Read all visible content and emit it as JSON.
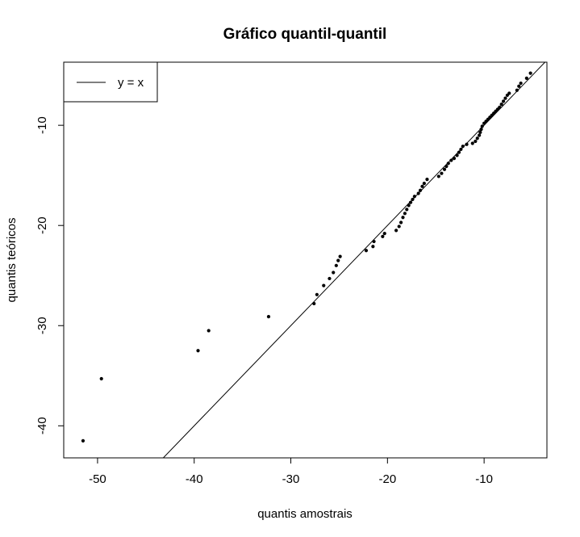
{
  "chart_data": {
    "type": "scatter",
    "title": "Gráfico quantil-quantil",
    "xlabel": "quantis amostrais",
    "ylabel": "quantis teóricos",
    "xlim": [
      -53.5,
      -3.5
    ],
    "ylim": [
      -43.2,
      -3.7
    ],
    "xticks": [
      -50,
      -40,
      -30,
      -20,
      -10
    ],
    "xtick_labels": [
      "-50",
      "-40",
      "-30",
      "-20",
      "-10"
    ],
    "yticks": [
      -40,
      -30,
      -20,
      -10
    ],
    "ytick_labels": [
      "-40",
      "-30",
      "-20",
      "-10"
    ],
    "grid": false,
    "legend": {
      "placement": "top-left",
      "entries": [
        {
          "label": "y = x",
          "style": "line"
        }
      ]
    },
    "reference_line": {
      "slope": 1,
      "intercept": 0,
      "label": "y = x"
    },
    "series": [
      {
        "points": [
          [
            -51.5,
            -41.5
          ],
          [
            -49.6,
            -35.3
          ],
          [
            -39.6,
            -32.5
          ],
          [
            -38.5,
            -30.5
          ],
          [
            -32.3,
            -29.1
          ],
          [
            -27.6,
            -27.8
          ],
          [
            -27.3,
            -26.9
          ],
          [
            -26.6,
            -26.0
          ],
          [
            -26.0,
            -25.3
          ],
          [
            -25.6,
            -24.7
          ],
          [
            -25.3,
            -24.0
          ],
          [
            -25.1,
            -23.5
          ],
          [
            -24.9,
            -23.1
          ],
          [
            -22.2,
            -22.5
          ],
          [
            -21.5,
            -22.1
          ],
          [
            -21.4,
            -21.6
          ],
          [
            -20.5,
            -21.1
          ],
          [
            -20.3,
            -20.8
          ],
          [
            -19.1,
            -20.5
          ],
          [
            -18.8,
            -20.1
          ],
          [
            -18.6,
            -19.7
          ],
          [
            -18.4,
            -19.2
          ],
          [
            -18.2,
            -18.8
          ],
          [
            -18.0,
            -18.4
          ],
          [
            -17.8,
            -18.0
          ],
          [
            -17.6,
            -17.7
          ],
          [
            -17.4,
            -17.4
          ],
          [
            -17.2,
            -17.1
          ],
          [
            -16.8,
            -16.8
          ],
          [
            -16.6,
            -16.5
          ],
          [
            -16.4,
            -16.1
          ],
          [
            -16.2,
            -15.8
          ],
          [
            -15.9,
            -15.4
          ],
          [
            -14.7,
            -15.1
          ],
          [
            -14.4,
            -14.8
          ],
          [
            -14.1,
            -14.4
          ],
          [
            -13.9,
            -14.1
          ],
          [
            -13.7,
            -13.8
          ],
          [
            -13.4,
            -13.5
          ],
          [
            -13.1,
            -13.3
          ],
          [
            -12.8,
            -13.0
          ],
          [
            -12.6,
            -12.7
          ],
          [
            -12.4,
            -12.4
          ],
          [
            -12.2,
            -12.1
          ],
          [
            -11.8,
            -11.9
          ],
          [
            -11.2,
            -11.8
          ],
          [
            -10.9,
            -11.6
          ],
          [
            -10.7,
            -11.3
          ],
          [
            -10.5,
            -11.0
          ],
          [
            -10.4,
            -10.7
          ],
          [
            -10.3,
            -10.4
          ],
          [
            -10.2,
            -10.1
          ],
          [
            -10.0,
            -9.8
          ],
          [
            -9.8,
            -9.6
          ],
          [
            -9.6,
            -9.4
          ],
          [
            -9.4,
            -9.2
          ],
          [
            -9.2,
            -9.0
          ],
          [
            -9.0,
            -8.8
          ],
          [
            -8.8,
            -8.6
          ],
          [
            -8.6,
            -8.4
          ],
          [
            -8.4,
            -8.2
          ],
          [
            -8.2,
            -7.9
          ],
          [
            -8.0,
            -7.6
          ],
          [
            -7.8,
            -7.3
          ],
          [
            -7.6,
            -7.0
          ],
          [
            -7.4,
            -6.8
          ],
          [
            -6.6,
            -6.5
          ],
          [
            -6.4,
            -6.1
          ],
          [
            -6.2,
            -5.8
          ],
          [
            -5.6,
            -5.3
          ],
          [
            -5.2,
            -4.8
          ]
        ]
      }
    ]
  }
}
